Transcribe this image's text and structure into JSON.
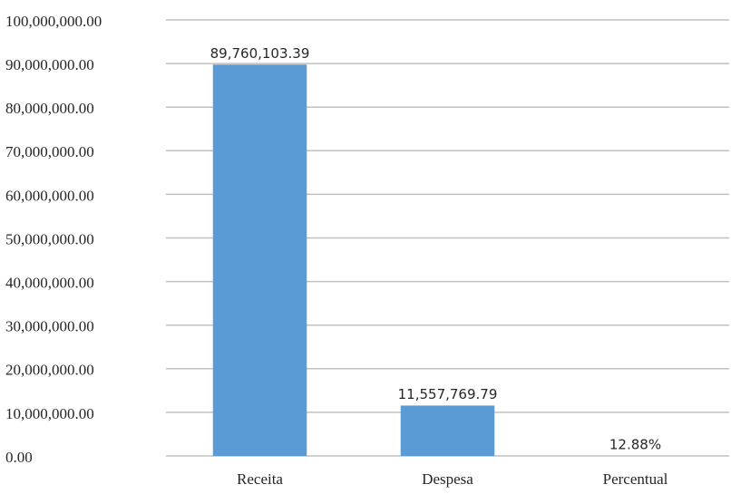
{
  "chart_data": {
    "type": "bar",
    "categories": [
      "Receita",
      "Despesa",
      "Percentual"
    ],
    "values": [
      89760103.39,
      11557769.79,
      12.88
    ],
    "value_labels": [
      "89,760,103.39",
      "11,557,769.79",
      "12.88%"
    ],
    "color": "#5b9bd5",
    "ylim": [
      0,
      100000000
    ],
    "yticks": [
      {
        "value": 0,
        "label": "0.00"
      },
      {
        "value": 10000000,
        "label": "10,000,000.00"
      },
      {
        "value": 20000000,
        "label": "20,000,000.00"
      },
      {
        "value": 30000000,
        "label": "30,000,000.00"
      },
      {
        "value": 40000000,
        "label": "40,000,000.00"
      },
      {
        "value": 50000000,
        "label": "50,000,000.00"
      },
      {
        "value": 60000000,
        "label": "60,000,000.00"
      },
      {
        "value": 70000000,
        "label": "70,000,000.00"
      },
      {
        "value": 80000000,
        "label": "80,000,000.00"
      },
      {
        "value": 90000000,
        "label": "90,000,000.00"
      },
      {
        "value": 100000000,
        "label": "100,000,000.00"
      }
    ],
    "grid": true
  }
}
